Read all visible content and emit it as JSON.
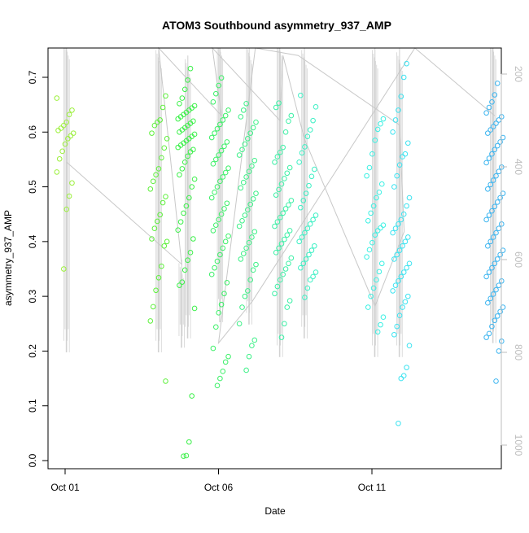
{
  "chart_data": {
    "type": "scatter",
    "title": "ATOM3 Southbound asymmetry_937_AMP",
    "xlabel": "Date",
    "ylabel": "asymmetry_937_AMP",
    "xlim": [
      0,
      14.8
    ],
    "ylim": [
      0,
      0.75
    ],
    "x_ticks": [
      {
        "value": 0,
        "label": "Oct 01"
      },
      {
        "value": 5,
        "label": "Oct 06"
      },
      {
        "value": 10,
        "label": "Oct 11"
      }
    ],
    "y_ticks": [
      0.0,
      0.1,
      0.2,
      0.3,
      0.4,
      0.5,
      0.6,
      0.7
    ],
    "y2_ticks": [
      200,
      400,
      600,
      800,
      1000
    ],
    "y2lim": [
      120,
      1045
    ],
    "y2_color": "#bebebe",
    "grid": false,
    "legend": "none",
    "series": [
      {
        "day": 0.0,
        "color": "#9cf03c",
        "values": [
          0.662,
          0.64,
          0.632,
          0.618,
          0.612,
          0.607,
          0.603,
          0.598,
          0.593,
          0.588,
          0.578,
          0.565,
          0.551,
          0.527,
          0.507,
          0.483,
          0.459,
          0.35
        ]
      },
      {
        "day": 3.05,
        "color": "#5ef03c",
        "values": [
          0.666,
          0.645,
          0.622,
          0.618,
          0.612,
          0.598,
          0.588,
          0.571,
          0.553,
          0.533,
          0.522,
          0.51,
          0.496,
          0.482,
          0.471,
          0.449,
          0.437,
          0.424,
          0.405,
          0.4,
          0.392,
          0.355,
          0.334,
          0.311,
          0.281,
          0.255,
          0.145
        ]
      },
      {
        "day": 3.95,
        "color": "#3cf04a",
        "values": [
          0.716,
          0.695,
          0.678,
          0.662,
          0.652,
          0.648,
          0.644,
          0.64,
          0.636,
          0.632,
          0.628,
          0.624,
          0.62,
          0.616,
          0.612,
          0.608,
          0.604,
          0.6,
          0.596,
          0.592,
          0.588,
          0.584,
          0.58,
          0.576,
          0.572,
          0.568,
          0.564,
          0.556,
          0.545,
          0.533,
          0.522,
          0.514,
          0.5,
          0.48,
          0.465,
          0.452,
          0.436,
          0.421,
          0.405,
          0.38,
          0.366,
          0.348,
          0.326,
          0.32,
          0.278,
          0.118,
          0.034,
          0.009,
          0.008
        ]
      },
      {
        "day": 5.05,
        "color": "#3cf068",
        "values": [
          0.699,
          0.685,
          0.67,
          0.655,
          0.64,
          0.63,
          0.622,
          0.614,
          0.606,
          0.598,
          0.59,
          0.582,
          0.574,
          0.566,
          0.558,
          0.55,
          0.542,
          0.534,
          0.526,
          0.518,
          0.51,
          0.5,
          0.49,
          0.48,
          0.47,
          0.46,
          0.45,
          0.44,
          0.43,
          0.42,
          0.41,
          0.4,
          0.388,
          0.376,
          0.364,
          0.352,
          0.34,
          0.325,
          0.305,
          0.285,
          0.27,
          0.244,
          0.205,
          0.19,
          0.18,
          0.163,
          0.15,
          0.137
        ]
      },
      {
        "day": 5.95,
        "color": "#3cf087",
        "values": [
          0.652,
          0.64,
          0.628,
          0.618,
          0.608,
          0.598,
          0.588,
          0.578,
          0.568,
          0.558,
          0.548,
          0.538,
          0.528,
          0.518,
          0.508,
          0.498,
          0.488,
          0.478,
          0.468,
          0.458,
          0.448,
          0.438,
          0.428,
          0.418,
          0.408,
          0.398,
          0.388,
          0.378,
          0.368,
          0.358,
          0.348,
          0.33,
          0.31,
          0.3,
          0.28,
          0.25,
          0.22,
          0.21,
          0.19,
          0.165
        ]
      },
      {
        "day": 7.1,
        "color": "#3cf0a6",
        "values": [
          0.653,
          0.645,
          0.63,
          0.62,
          0.6,
          0.572,
          0.563,
          0.555,
          0.545,
          0.535,
          0.525,
          0.515,
          0.505,
          0.495,
          0.485,
          0.475,
          0.467,
          0.46,
          0.452,
          0.444,
          0.436,
          0.428,
          0.42,
          0.412,
          0.404,
          0.396,
          0.388,
          0.38,
          0.37,
          0.36,
          0.35,
          0.34,
          0.33,
          0.318,
          0.305,
          0.292,
          0.28,
          0.25,
          0.225
        ]
      },
      {
        "day": 7.9,
        "color": "#3cf0c4",
        "values": [
          0.667,
          0.646,
          0.621,
          0.604,
          0.592,
          0.573,
          0.562,
          0.545,
          0.532,
          0.519,
          0.502,
          0.488,
          0.475,
          0.462,
          0.448,
          0.44,
          0.432,
          0.424,
          0.416,
          0.408,
          0.4,
          0.392,
          0.384,
          0.376,
          0.368,
          0.36,
          0.352,
          0.344,
          0.336,
          0.33,
          0.315,
          0.298
        ]
      },
      {
        "day": 10.1,
        "color": "#3cf0e3",
        "values": [
          0.624,
          0.615,
          0.605,
          0.585,
          0.56,
          0.535,
          0.52,
          0.505,
          0.49,
          0.48,
          0.465,
          0.452,
          0.438,
          0.43,
          0.425,
          0.42,
          0.412,
          0.398,
          0.385,
          0.372,
          0.36,
          0.345,
          0.33,
          0.315,
          0.3,
          0.28,
          0.262,
          0.248,
          0.235
        ]
      },
      {
        "day": 10.95,
        "color": "#3ce3f0",
        "values": [
          0.725,
          0.7,
          0.665,
          0.64,
          0.622,
          0.6,
          0.58,
          0.56,
          0.555,
          0.54,
          0.52,
          0.5,
          0.48,
          0.465,
          0.45,
          0.44,
          0.432,
          0.424,
          0.416,
          0.408,
          0.4,
          0.392,
          0.384,
          0.376,
          0.368,
          0.36,
          0.352,
          0.344,
          0.336,
          0.328,
          0.32,
          0.31,
          0.3,
          0.29,
          0.28,
          0.265,
          0.245,
          0.23,
          0.21,
          0.17,
          0.155,
          0.15,
          0.068
        ]
      },
      {
        "day": 14.0,
        "color": "#3cb5f0",
        "values": [
          0.689,
          0.668,
          0.655,
          0.645,
          0.635,
          0.628,
          0.622,
          0.616,
          0.61,
          0.604,
          0.598,
          0.59,
          0.582,
          0.575,
          0.568,
          0.56,
          0.552,
          0.544,
          0.536,
          0.528,
          0.52,
          0.512,
          0.504,
          0.496,
          0.488,
          0.48,
          0.472,
          0.464,
          0.456,
          0.448,
          0.44,
          0.432,
          0.424,
          0.416,
          0.408,
          0.4,
          0.392,
          0.384,
          0.376,
          0.368,
          0.36,
          0.352,
          0.344,
          0.336,
          0.328,
          0.32,
          0.312,
          0.304,
          0.296,
          0.288,
          0.28,
          0.272,
          0.264,
          0.256,
          0.245,
          0.232,
          0.225,
          0.218,
          0.2,
          0.145
        ]
      }
    ],
    "depth_lines": [
      {
        "x": 0.05,
        "top": 120,
        "bottom": 800
      },
      {
        "x": 3.05,
        "top": 140,
        "bottom": 800
      },
      {
        "x": 3.8,
        "top": 600,
        "bottom": 790
      },
      {
        "x": 4.0,
        "top": 160,
        "bottom": 770
      },
      {
        "x": 5.05,
        "top": 120,
        "bottom": 735
      },
      {
        "x": 6.0,
        "top": 130,
        "bottom": 740
      },
      {
        "x": 7.0,
        "top": 120,
        "bottom": 810
      },
      {
        "x": 7.8,
        "top": 140,
        "bottom": 770
      },
      {
        "x": 10.1,
        "top": 140,
        "bottom": 810
      },
      {
        "x": 10.9,
        "top": 145,
        "bottom": 810
      },
      {
        "x": 13.95,
        "top": 120,
        "bottom": 780
      }
    ],
    "depth_path": [
      {
        "x": 0.05,
        "depth": 390
      },
      {
        "x": 3.8,
        "depth": 610
      },
      {
        "x": 3.05,
        "depth": 130
      },
      {
        "x": 5.1,
        "depth": 290
      },
      {
        "x": 4.8,
        "depth": 120
      },
      {
        "x": 7.0,
        "depth": 300
      },
      {
        "x": 7.1,
        "depth": 160
      },
      {
        "x": 7.8,
        "depth": 340
      },
      {
        "x": 10.1,
        "depth": 700
      },
      {
        "x": 11.05,
        "depth": 540
      },
      {
        "x": 10.9,
        "depth": 310
      },
      {
        "x": 7.6,
        "depth": 160
      },
      {
        "x": 6.2,
        "depth": 120
      },
      {
        "x": 5.0,
        "depth": 780
      },
      {
        "x": 6.1,
        "depth": 690
      },
      {
        "x": 11.4,
        "depth": 120
      },
      {
        "x": 14.0,
        "depth": 290
      }
    ]
  }
}
